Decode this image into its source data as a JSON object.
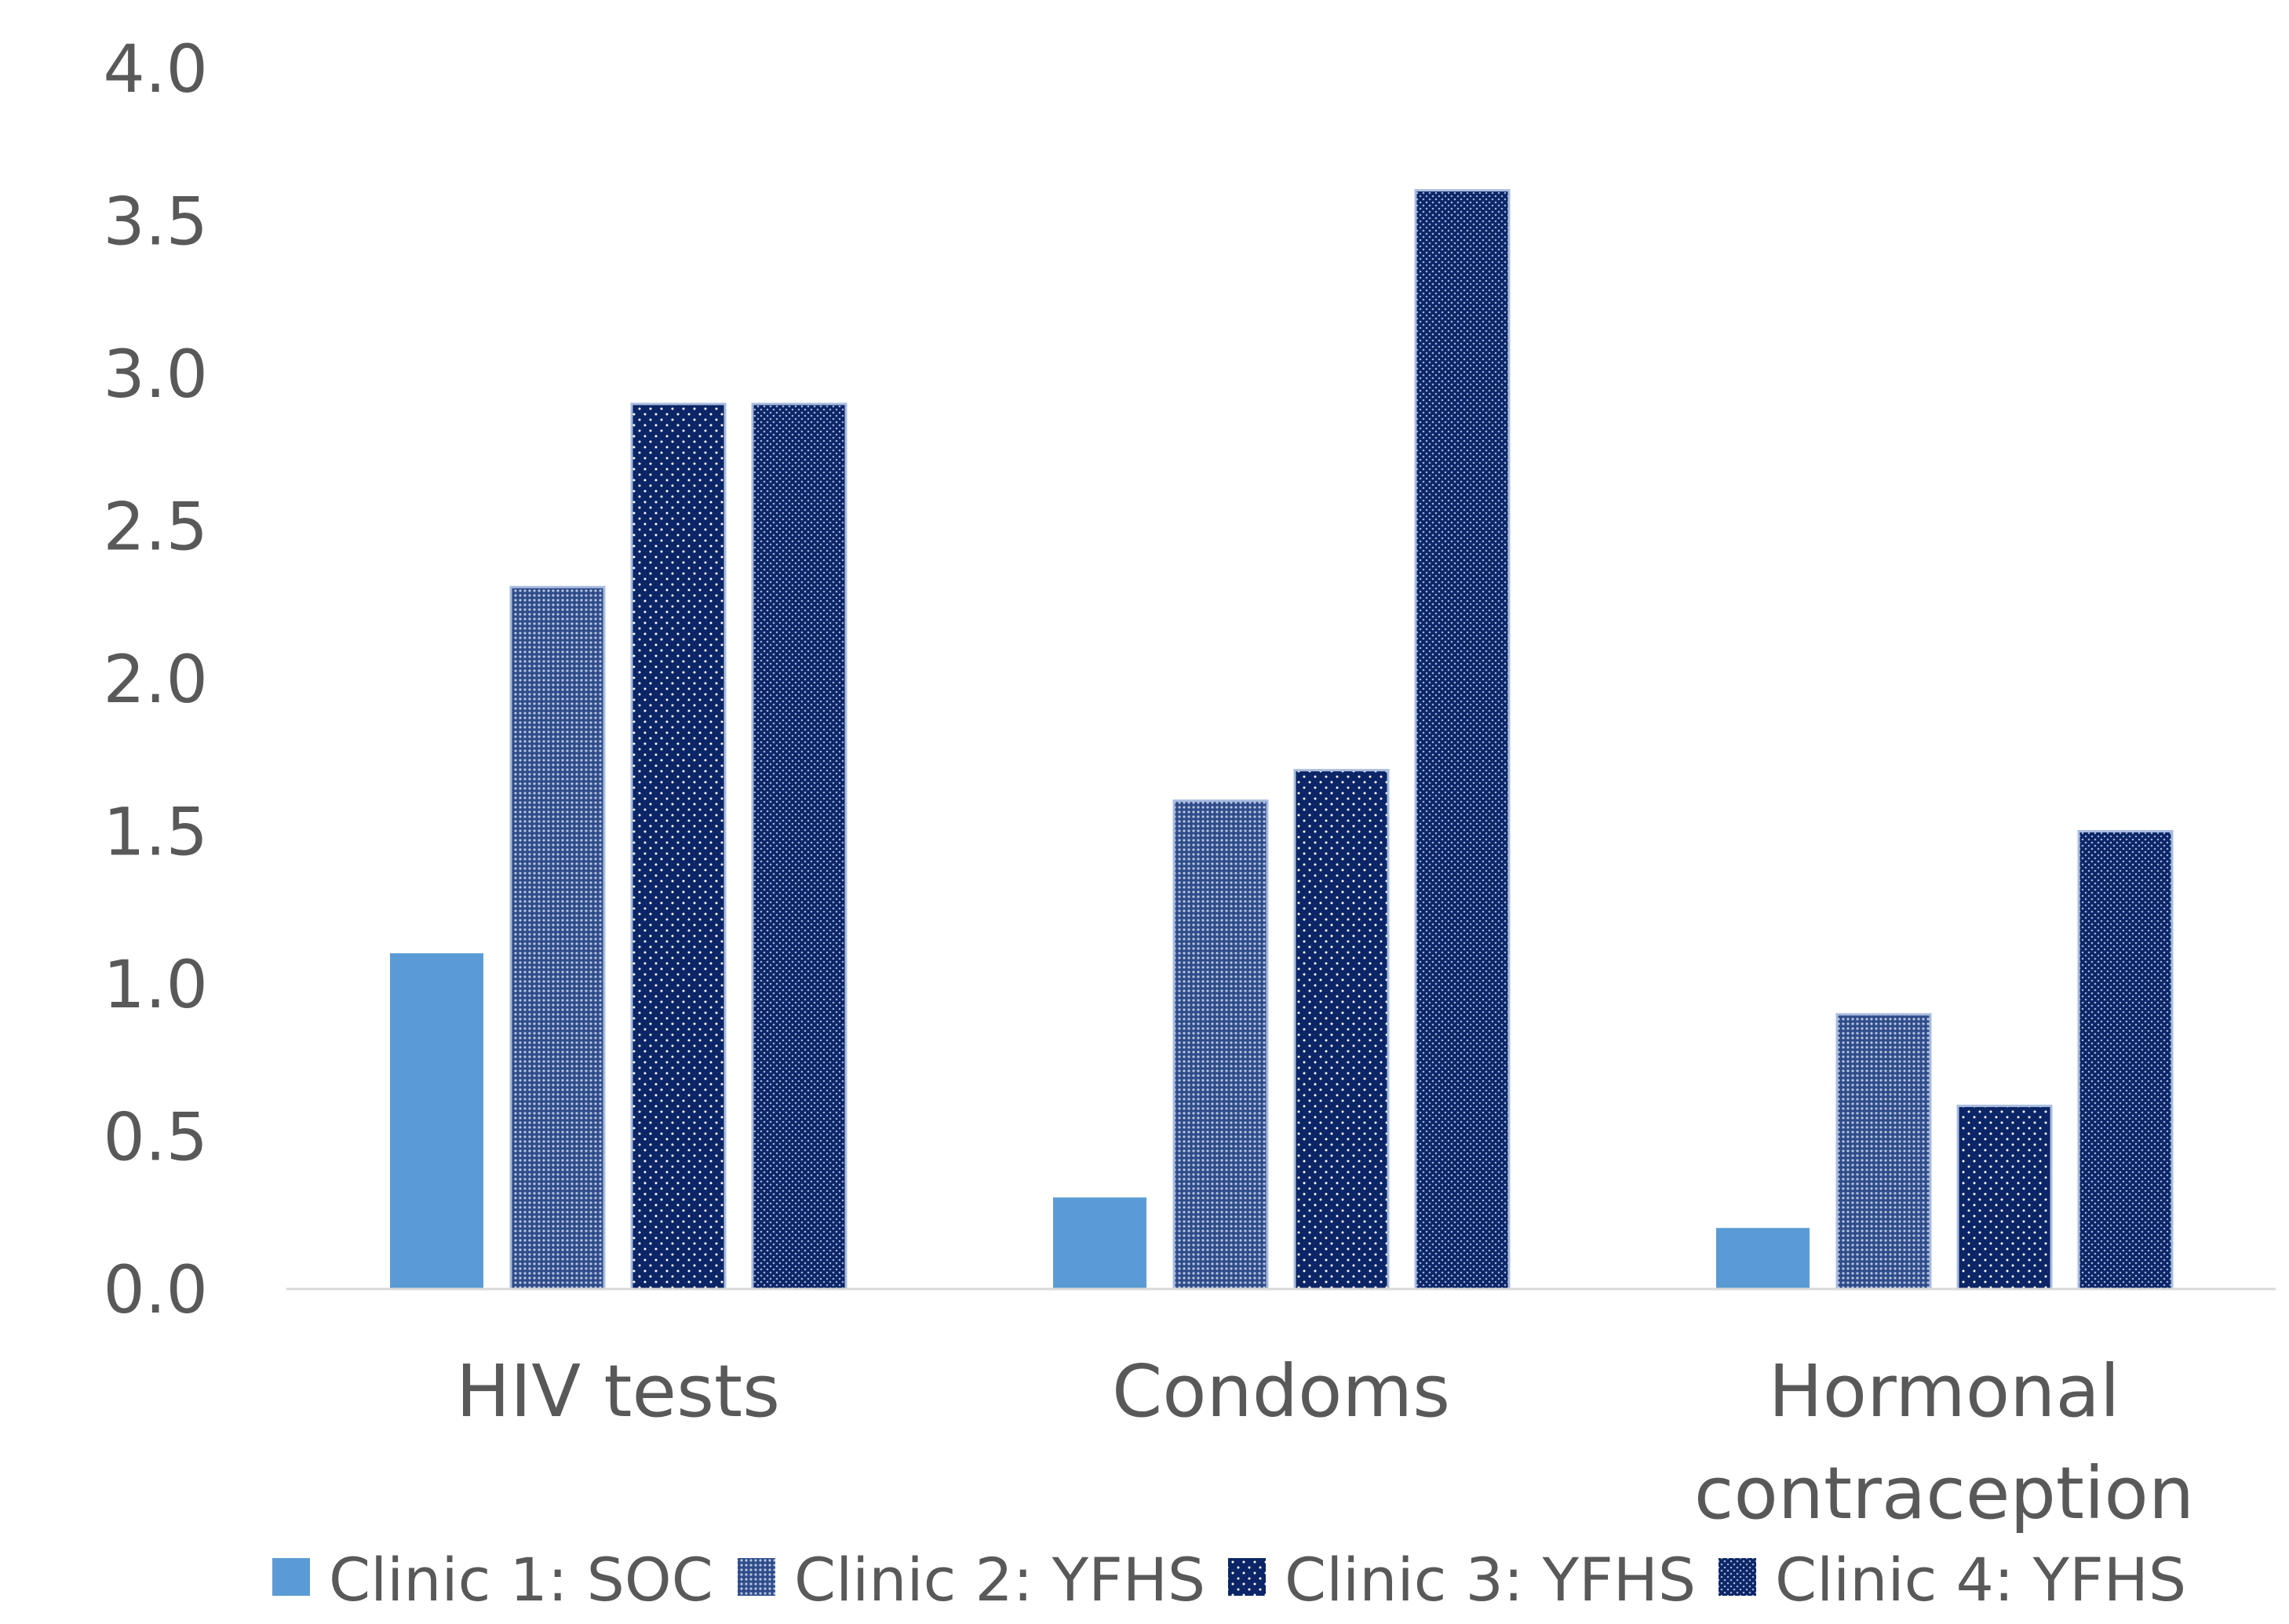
{
  "chart_data": {
    "type": "bar",
    "title": "",
    "xlabel": "",
    "ylabel": "",
    "ylim": [
      0,
      4
    ],
    "yticks": [
      "0.0",
      "0.5",
      "1.0",
      "1.5",
      "2.0",
      "2.5",
      "3.0",
      "3.5",
      "4.0"
    ],
    "grid": false,
    "legend_position": "bottom",
    "categories": [
      [
        "HIV tests"
      ],
      [
        "Condoms"
      ],
      [
        "Hormonal",
        "contraception"
      ]
    ],
    "series": [
      {
        "name": "Clinic 1: SOC",
        "values": [
          1.1,
          0.3,
          0.2
        ],
        "color": "#5b9bd5",
        "pattern": "solid"
      },
      {
        "name": "Clinic 2: YFHS",
        "values": [
          2.3,
          1.6,
          0.9
        ],
        "color": "#2f4c8a",
        "pattern": "fine-dots"
      },
      {
        "name": "Clinic 3: YFHS",
        "values": [
          2.9,
          1.7,
          0.6
        ],
        "color": "#0b2566",
        "pattern": "sparse-dots"
      },
      {
        "name": "Clinic 4: YFHS",
        "values": [
          2.9,
          3.6,
          1.5
        ],
        "color": "#0b2566",
        "pattern": "medium-dots"
      }
    ],
    "axis_color": "#d9d9d9",
    "text_color": "#595959"
  }
}
